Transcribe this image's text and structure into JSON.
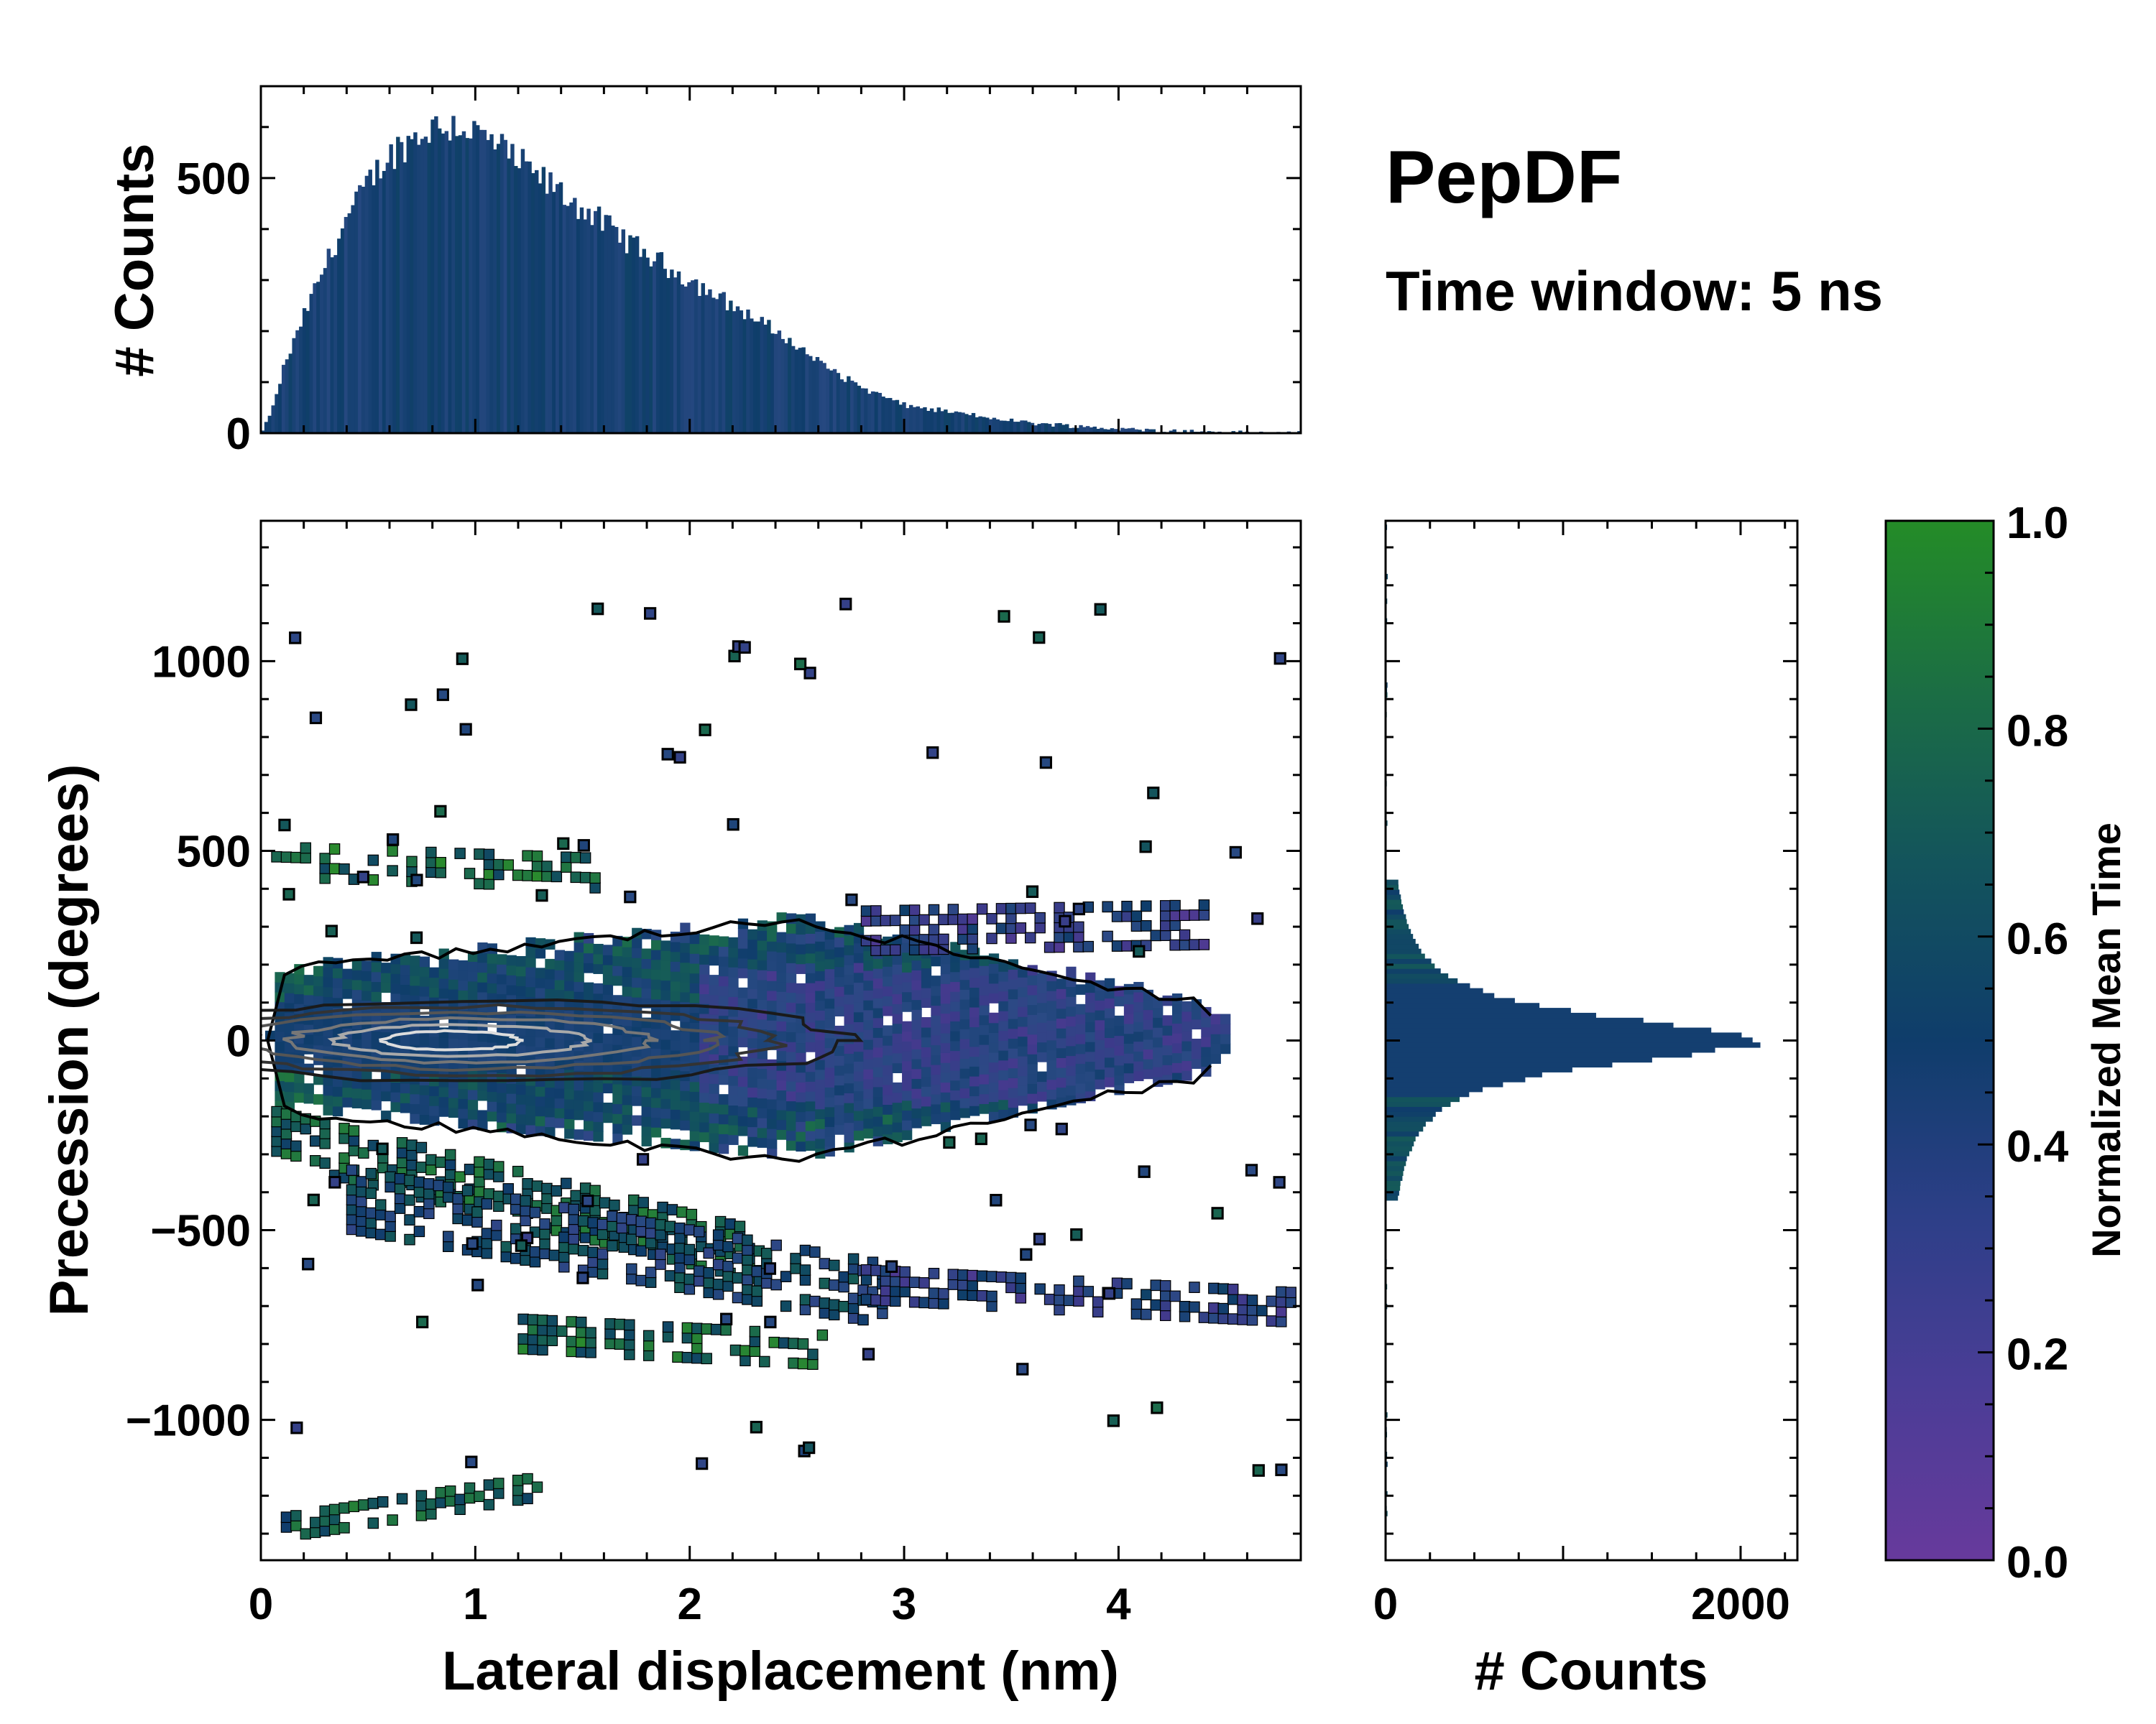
{
  "chart_data": [
    {
      "type": "histogram",
      "name": "top-marginal",
      "ylabel": "# Counts",
      "xlim": [
        0,
        4.85
      ],
      "ylim": [
        0,
        680
      ],
      "yticks": [
        0,
        500
      ],
      "envelope_x": [
        0,
        0.05,
        0.1,
        0.2,
        0.3,
        0.4,
        0.5,
        0.6,
        0.7,
        0.8,
        0.9,
        1.0,
        1.1,
        1.2,
        1.4,
        1.6,
        1.8,
        2.0,
        2.2,
        2.4,
        2.6,
        2.8,
        3.0,
        3.2,
        3.4,
        3.6,
        3.8,
        4.0,
        4.2,
        4.4,
        4.6,
        4.85
      ],
      "envelope_y": [
        0,
        40,
        120,
        230,
        330,
        420,
        490,
        545,
        575,
        600,
        605,
        590,
        565,
        530,
        470,
        410,
        350,
        300,
        250,
        200,
        140,
        90,
        55,
        42,
        30,
        20,
        14,
        8,
        5,
        3,
        1,
        0
      ]
    },
    {
      "type": "heatmap",
      "name": "main-2d-histogram",
      "xlabel": "Lateral displacement (nm)",
      "ylabel": "Precession (degrees)",
      "xlim": [
        0,
        4.85
      ],
      "ylim": [
        -1370,
        1370
      ],
      "xticks": [
        0,
        1,
        2,
        3,
        4
      ],
      "yticks": [
        1000,
        500,
        0,
        -500,
        -1000
      ],
      "ytick_labels": [
        "1000",
        "500",
        "0",
        "−500",
        "−1000"
      ],
      "colormap": "Normalized Mean Time",
      "contour_center": [
        0.85,
        0
      ],
      "contour_levels": 6
    },
    {
      "type": "histogram",
      "orientation": "horizontal",
      "name": "right-marginal",
      "xlabel": "# Counts",
      "xlim": [
        0,
        2320
      ],
      "xticks": [
        0,
        2000
      ],
      "peak_count": 2100,
      "peak_at": 0,
      "width_deg": 85
    }
  ],
  "labels": {
    "title": "PepDF",
    "subtitle": "Time window: 5 ns",
    "top_ylabel": "# Counts",
    "main_xlabel": "Lateral displacement (nm)",
    "main_ylabel": "Precession (degrees)",
    "right_xlabel": "# Counts",
    "colorbar_label": "Normalized Mean Time"
  },
  "colorbar": {
    "min": 0.0,
    "max": 1.0,
    "ticks": [
      0.0,
      0.2,
      0.4,
      0.6,
      0.8,
      1.0
    ],
    "tick_labels": [
      "0.0",
      "0.2",
      "0.4",
      "0.6",
      "0.8",
      "1.0"
    ],
    "colors": [
      "#673a9c",
      "#3c3a8a",
      "#2a4a84",
      "#0f3d6b",
      "#13545c",
      "#1c6d4a",
      "#2a8a2e"
    ]
  }
}
